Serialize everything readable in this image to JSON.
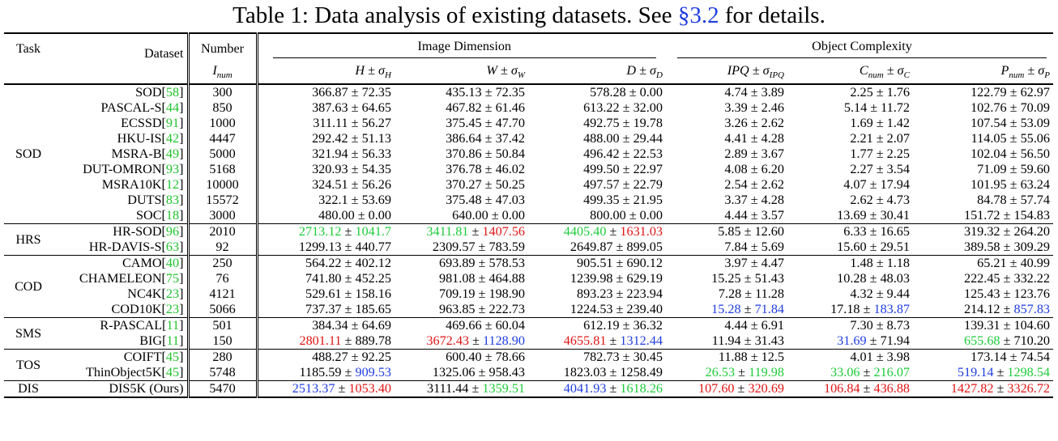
{
  "caption": {
    "prefix": "Table 1: Data analysis of existing datasets. See ",
    "section": "§3.2",
    "suffix": " for details."
  },
  "header": {
    "task": "Task",
    "dataset": "Dataset",
    "number": "Number",
    "image_dimension": "Image Dimension",
    "object_complexity": "Object Complexity",
    "inum": "I",
    "inum_sub": "num",
    "h": "H ± σ",
    "h_sub": "H",
    "w": "W ± σ",
    "w_sub": "W",
    "d": "D ± σ",
    "d_sub": "D",
    "ipq": "IPQ ± σ",
    "ipq_sub": "IPQ",
    "cnum": "C",
    "cnum_mid": " ± σ",
    "cnum_sub": "num",
    "cnum_sub2": "C",
    "pnum": "P",
    "pnum_mid": " ± σ",
    "pnum_sub": "num",
    "pnum_sub2": "P"
  },
  "colors": {
    "ref": "#22c32e",
    "green": "#1ecb3a",
    "red": "#e01414",
    "blue": "#1f3de0"
  },
  "groups": [
    {
      "task": "SOD",
      "rows": [
        {
          "name": "SOD",
          "ref": "58",
          "num": "300",
          "h": "366.87 ± 72.35",
          "w": "435.13 ± 72.35",
          "d": "578.28 ± 0.00",
          "ipq": "4.74 ± 3.89",
          "c": "2.25 ± 1.76",
          "p": "122.79 ± 62.97"
        },
        {
          "name": "PASCAL-S",
          "ref": "44",
          "num": "850",
          "h": "387.63 ± 64.65",
          "w": "467.82 ± 61.46",
          "d": "613.22 ± 32.00",
          "ipq": "3.39 ± 2.46",
          "c": "5.14 ± 11.72",
          "p": "102.76 ± 70.09"
        },
        {
          "name": "ECSSD",
          "ref": "91",
          "num": "1000",
          "h": "311.11 ± 56.27",
          "w": "375.45 ± 47.70",
          "d": "492.75 ± 19.78",
          "ipq": "3.26 ± 2.62",
          "c": "1.69 ± 1.42",
          "p": "107.54 ± 53.09"
        },
        {
          "name": "HKU-IS",
          "ref": "42",
          "num": "4447",
          "h": "292.42 ± 51.13",
          "w": "386.64 ± 37.42",
          "d": "488.00 ± 29.44",
          "ipq": "4.41 ± 4.28",
          "c": "2.21 ± 2.07",
          "p": "114.05 ± 55.06"
        },
        {
          "name": "MSRA-B",
          "ref": "49",
          "num": "5000",
          "h": "321.94 ± 56.33",
          "w": "370.86 ± 50.84",
          "d": "496.42 ± 22.53",
          "ipq": "2.89 ± 3.67",
          "c": "1.77 ± 2.25",
          "p": "102.04 ± 56.50"
        },
        {
          "name": "DUT-OMRON",
          "ref": "93",
          "num": "5168",
          "h": "320.93 ± 54.35",
          "w": "376.78 ± 46.02",
          "d": "499.50 ± 22.97",
          "ipq": "4.08 ± 6.20",
          "c": "2.27 ± 3.54",
          "p": "71.09 ± 59.60"
        },
        {
          "name": "MSRA10K",
          "ref": "12",
          "num": "10000",
          "h": "324.51 ± 56.26",
          "w": "370.27 ± 50.25",
          "d": "497.57 ± 22.79",
          "ipq": "2.54 ± 2.62",
          "c": "4.07 ± 17.94",
          "p": "101.95 ± 63.24"
        },
        {
          "name": "DUTS",
          "ref": "83",
          "num": "15572",
          "h": "322.1 ± 53.69",
          "w": "375.48 ± 47.03",
          "d": "499.35 ± 21.95",
          "ipq": "3.37 ± 4.28",
          "c": "2.62 ± 4.73",
          "p": "84.78 ± 57.74"
        },
        {
          "name": "SOC",
          "ref": "18",
          "num": "3000",
          "h": "480.00 ± 0.00",
          "w": "640.00 ± 0.00",
          "d": "800.00 ± 0.00",
          "ipq": "4.44 ± 3.57",
          "c": "13.69 ± 30.41",
          "p": "151.72 ± 154.83"
        }
      ]
    },
    {
      "task": "HRS",
      "rows": [
        {
          "name": "HR-SOD",
          "ref": "96",
          "num": "2010",
          "h_a": "2713.12",
          "h_ac": "green",
          "h_b": "1041.7",
          "h_bc": "green",
          "w_a": "3411.81",
          "w_ac": "green",
          "w_b": "1407.56",
          "w_bc": "red",
          "d_a": "4405.40",
          "d_ac": "green",
          "d_b": "1631.03",
          "d_bc": "red",
          "ipq": "5.85 ± 12.60",
          "c": "6.33 ± 16.65",
          "p": "319.32 ± 264.20"
        },
        {
          "name": "HR-DAVIS-S",
          "ref": "63",
          "num": "92",
          "h": "1299.13 ± 440.77",
          "w": "2309.57 ± 783.59",
          "d": "2649.87 ± 899.05",
          "ipq": "7.84 ± 5.69",
          "c": "15.60 ± 29.51",
          "p": "389.58 ± 309.29"
        }
      ]
    },
    {
      "task": "COD",
      "rows": [
        {
          "name": "CAMO",
          "ref": "40",
          "num": "250",
          "h": "564.22 ± 402.12",
          "w": "693.89 ± 578.53",
          "d": "905.51 ± 690.12",
          "ipq": "3.97 ± 4.47",
          "c": "1.48 ± 1.18",
          "p": "65.21 ± 40.99"
        },
        {
          "name": "CHAMELEON",
          "ref": "75",
          "num": "76",
          "h": "741.80 ± 452.25",
          "w": "981.08 ± 464.88",
          "d": "1239.98 ± 629.19",
          "ipq": "15.25 ± 51.43",
          "c": "10.28 ± 48.03",
          "p": "222.45 ± 332.22"
        },
        {
          "name": "NC4K",
          "ref": "23",
          "num": "4121",
          "h": "529.61 ± 158.16",
          "w": "709.19 ± 198.90",
          "d": "893.23 ± 223.94",
          "ipq": "7.28 ± 11.28",
          "c": "4.32 ± 9.44",
          "p": "125.43 ± 123.76"
        },
        {
          "name": "COD10K",
          "ref": "23",
          "num": "5066",
          "h": "737.37 ± 185.65",
          "w": "963.85 ± 222.73",
          "d": "1224.53 ± 239.40",
          "ipq_a": "15.28",
          "ipq_ac": "blue",
          "ipq_b": "71.84",
          "ipq_bc": "blue",
          "c_a": "17.18",
          "c_ac": "",
          "c_b": "183.87",
          "c_bc": "blue",
          "p_a": "214.12",
          "p_ac": "",
          "p_b": "857.83",
          "p_bc": "blue"
        }
      ]
    },
    {
      "task": "SMS",
      "rows": [
        {
          "name": "R-PASCAL",
          "ref": "11",
          "num": "501",
          "h": "384.34 ± 64.69",
          "w": "469.66 ± 60.04",
          "d": "612.19 ± 36.32",
          "ipq": "4.44 ± 6.91",
          "c": "7.30 ± 8.73",
          "p": "139.31 ± 104.60"
        },
        {
          "name": "BIG",
          "ref": "11",
          "num": "150",
          "h_a": "2801.11",
          "h_ac": "red",
          "h_b": "889.78",
          "h_bc": "",
          "w_a": "3672.43",
          "w_ac": "red",
          "w_b": "1128.90",
          "w_bc": "blue",
          "d_a": "4655.81",
          "d_ac": "red",
          "d_b": "1312.44",
          "d_bc": "blue",
          "ipq": "11.94 ± 31.43",
          "c_a": "31.69",
          "c_ac": "blue",
          "c_b": "71.94",
          "c_bc": "",
          "p_a": "655.68",
          "p_ac": "green",
          "p_b": "710.20",
          "p_bc": ""
        }
      ]
    },
    {
      "task": "TOS",
      "rows": [
        {
          "name": "COIFT",
          "ref": "45",
          "num": "280",
          "h": "488.27 ± 92.25",
          "w": "600.40 ± 78.66",
          "d": "782.73 ± 30.45",
          "ipq": "11.88 ± 12.5",
          "c": "4.01 ± 3.98",
          "p": "173.14 ± 74.54"
        },
        {
          "name": "ThinObject5K",
          "ref": "45",
          "num": "5748",
          "h_a": "1185.59",
          "h_ac": "",
          "h_b": "909.53",
          "h_bc": "blue",
          "w": "1325.06 ± 958.43",
          "d": "1823.03 ± 1258.49",
          "ipq_a": "26.53",
          "ipq_ac": "green",
          "ipq_b": "119.98",
          "ipq_bc": "green",
          "c_a": "33.06",
          "c_ac": "green",
          "c_b": "216.07",
          "c_bc": "green",
          "p_a": "519.14",
          "p_ac": "blue",
          "p_b": "1298.54",
          "p_bc": "green"
        }
      ]
    },
    {
      "task": "DIS",
      "rows": [
        {
          "name": "DIS5K (Ours)",
          "ref": "",
          "num": "5470",
          "bold": true,
          "h_a": "2513.37",
          "h_ac": "blue",
          "h_b": "1053.40",
          "h_bc": "red",
          "w_a": "3111.44",
          "w_ac": "",
          "w_b": "1359.51",
          "w_bc": "green",
          "d_a": "4041.93",
          "d_ac": "blue",
          "d_b": "1618.26",
          "d_bc": "green",
          "ipq_a": "107.60",
          "ipq_ac": "red",
          "ipq_b": "320.69",
          "ipq_bc": "red",
          "c_a": "106.84",
          "c_ac": "red",
          "c_b": "436.88",
          "c_bc": "red",
          "p_a": "1427.82",
          "p_ac": "red",
          "p_b": "3326.72",
          "p_bc": "red"
        }
      ]
    }
  ]
}
